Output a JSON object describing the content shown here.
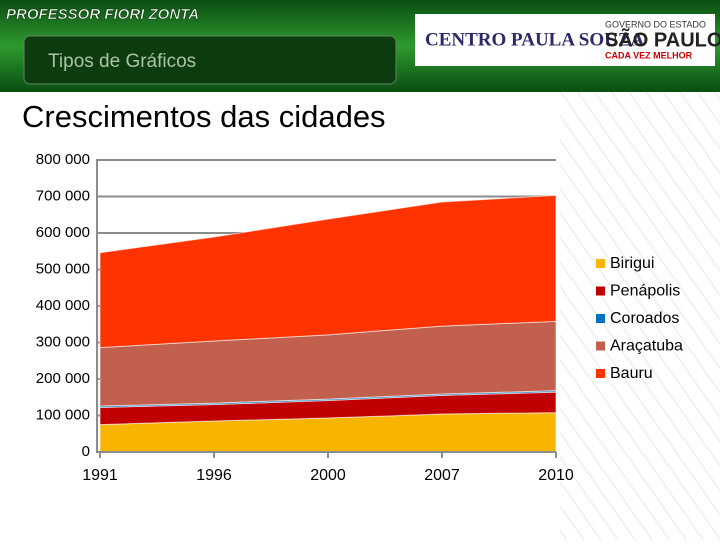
{
  "header": {
    "brand": "PROFESSOR FIORI ZONTA",
    "section": "Tipos de Gráficos",
    "institution": "CENTRO PAULA SOUZA",
    "government": [
      "GOVERNO DO ESTADO",
      "SÃO PAULO",
      "CADA VEZ MELHOR"
    ]
  },
  "chart_data": {
    "type": "stacked-area",
    "title": "Crescimentos das cidades",
    "categories": [
      "1991",
      "1996",
      "2000",
      "2007",
      "2010"
    ],
    "series": [
      {
        "name": "Birigui",
        "color": "#f7b500",
        "values": [
          75000,
          85000,
          93000,
          104000,
          108000
        ]
      },
      {
        "name": "Penápolis",
        "color": "#c00000",
        "values": [
          47000,
          45000,
          48000,
          51000,
          56000
        ]
      },
      {
        "name": "Coroados",
        "color": "#0070c0",
        "values": [
          4000,
          4000,
          4000,
          4000,
          4000
        ]
      },
      {
        "name": "Araçatuba",
        "color": "#c0604d",
        "values": [
          160000,
          170000,
          176000,
          186000,
          190000
        ]
      },
      {
        "name": "Bauru",
        "color": "#ff3300",
        "values": [
          260000,
          285000,
          317000,
          340000,
          345000
        ]
      }
    ],
    "ylim": [
      0,
      800000
    ],
    "yticks": [
      0,
      {
        "value": 100000,
        "label": "100 000"
      },
      {
        "value": 200000,
        "label": "200 000"
      },
      {
        "value": 300000,
        "label": "300 000"
      },
      {
        "value": 400000,
        "label": "400 000"
      },
      {
        "value": 500000,
        "label": "500 000"
      },
      {
        "value": 600000,
        "label": "600 000"
      },
      {
        "value": 700000,
        "label": "700 000"
      },
      {
        "value": 800000,
        "label": "800 000"
      }
    ],
    "grid": true,
    "legend": "right"
  }
}
